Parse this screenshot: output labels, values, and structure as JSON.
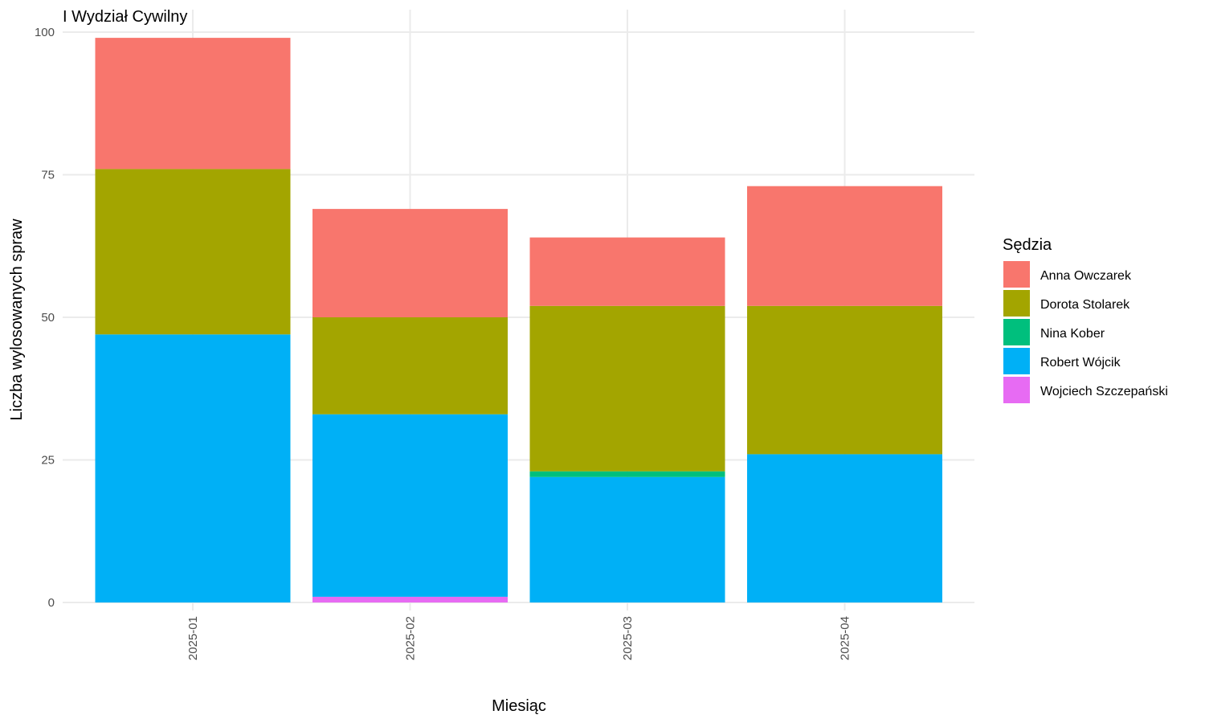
{
  "chart_data": {
    "type": "bar",
    "stacked": true,
    "title": "I Wydział Cywilny",
    "xlabel": "Miesiąc",
    "ylabel": "Liczba wylosowanych spraw",
    "ylim": [
      0,
      100
    ],
    "yticks": [
      0,
      25,
      50,
      75,
      100
    ],
    "grid": true,
    "legend_title": "Sędzia",
    "legend_position": "right",
    "categories": [
      "2025-01",
      "2025-02",
      "2025-03",
      "2025-04"
    ],
    "series": [
      {
        "name": "Anna Owczarek",
        "color": "#F8766D",
        "values": [
          23,
          19,
          12,
          21
        ]
      },
      {
        "name": "Dorota Stolarek",
        "color": "#A3A500",
        "values": [
          29,
          17,
          29,
          26
        ]
      },
      {
        "name": "Nina Kober",
        "color": "#00BF7D",
        "values": [
          0,
          0,
          1,
          0
        ]
      },
      {
        "name": "Robert Wójcik",
        "color": "#00B0F6",
        "values": [
          47,
          32,
          22,
          26
        ]
      },
      {
        "name": "Wojciech Szczepański",
        "color": "#E76BF3",
        "values": [
          0,
          1,
          0,
          0
        ]
      }
    ]
  }
}
